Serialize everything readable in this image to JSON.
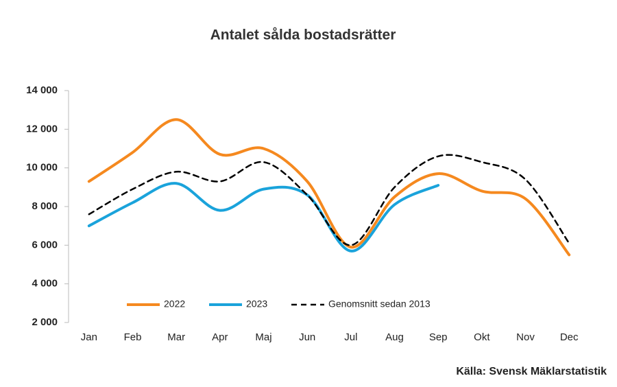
{
  "chart_data": {
    "type": "line",
    "title": "Antalet sålda bostadsrätter",
    "source": "Källa: Svensk Mäklarstatistik",
    "categories": [
      "Jan",
      "Feb",
      "Mar",
      "Apr",
      "Maj",
      "Jun",
      "Jul",
      "Aug",
      "Sep",
      "Okt",
      "Nov",
      "Dec"
    ],
    "series": [
      {
        "name": "2022",
        "color": "#f5891f",
        "dash": false,
        "values": [
          9300,
          10800,
          12500,
          10700,
          11000,
          9300,
          5900,
          8500,
          9700,
          8800,
          8400,
          5500
        ]
      },
      {
        "name": "2023",
        "color": "#1aa3db",
        "dash": false,
        "values": [
          7000,
          8200,
          9200,
          7800,
          8900,
          8600,
          5700,
          8100,
          9100,
          null,
          null,
          null
        ]
      },
      {
        "name": "Genomsnitt sedan 2013",
        "color": "#000000",
        "dash": true,
        "values": [
          7600,
          8900,
          9800,
          9300,
          10300,
          8600,
          6000,
          9000,
          10600,
          10300,
          9400,
          6100
        ]
      }
    ],
    "ylim": [
      2000,
      14000
    ],
    "yticks": [
      {
        "value": 2000,
        "label": "2 000"
      },
      {
        "value": 4000,
        "label": "4 000"
      },
      {
        "value": 6000,
        "label": "6 000"
      },
      {
        "value": 8000,
        "label": "8 000"
      },
      {
        "value": 10000,
        "label": "10 000"
      },
      {
        "value": 12000,
        "label": "12 000"
      },
      {
        "value": 14000,
        "label": "14 000"
      }
    ],
    "grid": false,
    "legend": "bottom"
  }
}
